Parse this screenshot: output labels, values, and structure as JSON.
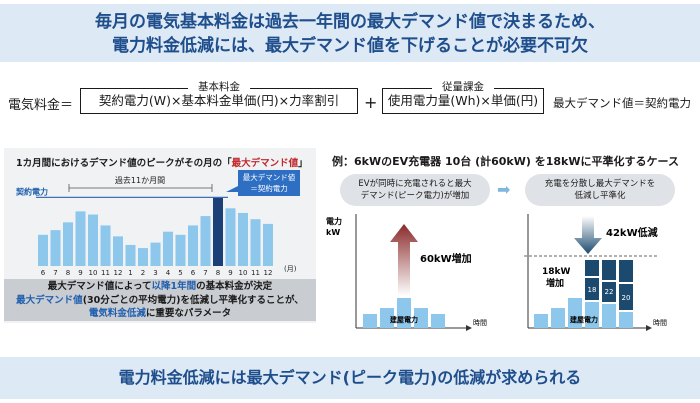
{
  "header": {
    "line1": "毎月の電気基本料金は過去一年間の最大デマンド値で決まるため、",
    "line2": "電力料金低減には、最大デマンド値を下げることが必要不可欠"
  },
  "formula": {
    "lhs": "電気料金＝",
    "basic_label": "基本料金",
    "basic_formula": "契約電力(W)×基本料金単価(円)×力率割引",
    "plus": "+",
    "usage_label": "従量課金",
    "usage_formula": "使用電力量(Wh)×単価(円)",
    "note": "最大デマンド値＝契約電力"
  },
  "left_panel": {
    "heading_prefix": "1カ月間におけるデマンド値のピークがその月の「",
    "heading_emph": "最大デマンド値",
    "heading_suffix": "」",
    "past_label": "過去11か月間",
    "contract_label": "契約電力",
    "callout": [
      "最大デマンド値",
      "＝契約電力"
    ],
    "chart_data": {
      "type": "bar",
      "categories": [
        "6",
        "7",
        "8",
        "9",
        "10",
        "11",
        "12",
        "1",
        "2",
        "3",
        "4",
        "5",
        "6",
        "7",
        "8",
        "9",
        "10",
        "11",
        "12"
      ],
      "values": [
        40,
        46,
        56,
        70,
        66,
        52,
        38,
        27,
        23,
        30,
        44,
        40,
        52,
        64,
        88,
        74,
        68,
        60,
        54
      ],
      "highlight_index": 14,
      "contract_level": 88,
      "ylim": [
        0,
        100
      ],
      "x_unit": "(月)"
    },
    "footer": {
      "l1_a": "最大デマンド値によって",
      "l1_b": "以降1年間",
      "l1_c": "の基本料金が決定",
      "l2_a": "最大デマンド値",
      "l2_b": "(30分ごとの平均電力)を低減し平準化することが、",
      "l3_a": "電気料金低減",
      "l3_b": "に重要なパラメータ"
    }
  },
  "right_panel": {
    "title": "例：6kWのEV充電器 10台 (計60kW) を18kWに平準化するケース",
    "pill_left": [
      "EVが同時に充電されると最大",
      "デマンド(ピーク電力)が増加"
    ],
    "pill_right": [
      "充電を分散し最大デマンドを",
      "低減し平準化"
    ],
    "axis_y": [
      "電力",
      "kW"
    ],
    "axis_x": "時間",
    "building_label": "建屋電力",
    "increase_label": "60kW増加",
    "decrease_label": "42kW低減",
    "increase18_label": [
      "18kW",
      "増加"
    ],
    "stack_values": [
      "18",
      "22",
      "20"
    ]
  },
  "footer_banner": "電力料金低減には最大デマンド(ピーク電力)の低減が求められる",
  "colors": {
    "banner_bg": "#dde9f4",
    "banner_text": "#1f4e8c",
    "bar": "#8ec7ec",
    "highlight_bar": "#1b3f77",
    "stack": "#1b4a6e",
    "arrow_red": "#8a2a2a",
    "contract_line": "#3f6fb5"
  }
}
